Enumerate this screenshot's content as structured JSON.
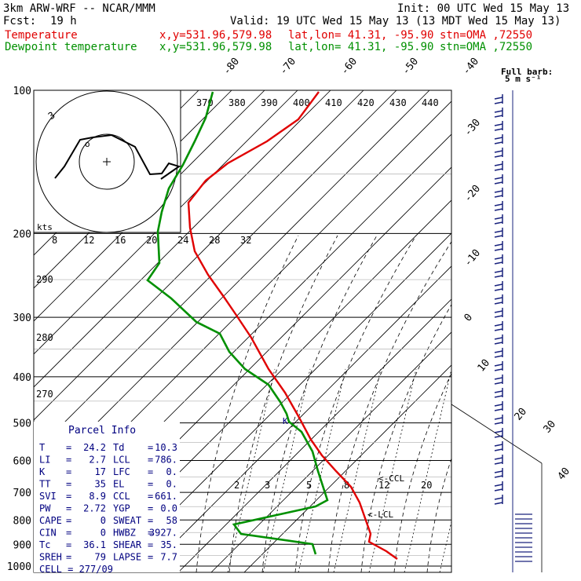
{
  "header": {
    "model": "3km ARW-WRF -- NCAR/MMM",
    "init": "Init: 00 UTC Wed 15 May 13",
    "fcst_label": "Fcst:",
    "fcst_value": "19 h",
    "valid": "Valid: 19 UTC Wed 15 May 13 (13 MDT Wed 15 May 13)",
    "temp_label": "Temperature",
    "dew_label": "Dewpoint temperature",
    "xy": "x,y=531.96,579.98",
    "latlon": "lat,lon= 41.31, -95.90",
    "stn": "stn=OMA ,72550",
    "full_barb": "Full barb:",
    "barb_unit": "5 m s⁻¹"
  },
  "chart_data": {
    "type": "line",
    "title": "",
    "xlabel": "",
    "ylabel": "",
    "y_scale": "log",
    "ylim": [
      1000,
      100
    ],
    "pressure_levels": [
      100,
      200,
      300,
      400,
      500,
      600,
      700,
      800,
      900,
      1000
    ],
    "isotherm_labels": [
      "-80",
      "-70",
      "-60",
      "-50",
      "-40",
      "-30",
      "-20",
      "-10",
      "0",
      "10",
      "20",
      "30",
      "40"
    ],
    "theta_labels": [
      "370",
      "380",
      "390",
      "400",
      "410",
      "420",
      "430",
      "440"
    ],
    "theta_left_labels": [
      "290",
      "280",
      "270"
    ],
    "mixing_ratio_labels": [
      "2",
      "3",
      "5",
      "8",
      "12",
      "20"
    ],
    "ccl_label": "<-CCL",
    "lcl_label": "<-LCL",
    "k_label": "K",
    "hodograph": {
      "units": "kts",
      "ring_label": "3",
      "speed_labels": [
        "8",
        "12",
        "16",
        "20",
        "24",
        "28",
        "32"
      ]
    },
    "series": [
      {
        "name": "Temperature",
        "color": "#e00000",
        "points": [
          [
            406,
            117
          ],
          [
            380,
            152
          ],
          [
            340,
            180
          ],
          [
            290,
            208
          ],
          [
            262,
            230
          ],
          [
            240,
            258
          ],
          [
            242,
            290
          ],
          [
            248,
            320
          ],
          [
            265,
            350
          ],
          [
            285,
            378
          ],
          [
            300,
            400
          ],
          [
            320,
            430
          ],
          [
            342,
            470
          ],
          [
            363,
            500
          ],
          [
            380,
            530
          ],
          [
            396,
            560
          ],
          [
            410,
            580
          ],
          [
            428,
            600
          ],
          [
            447,
            620
          ],
          [
            458,
            640
          ],
          [
            465,
            660
          ],
          [
            472,
            680
          ],
          [
            470,
            690
          ],
          [
            492,
            702
          ],
          [
            506,
            712
          ]
        ]
      },
      {
        "name": "Dewpoint temperature",
        "color": "#009000",
        "points": [
          [
            271,
            117
          ],
          [
            262,
            150
          ],
          [
            248,
            180
          ],
          [
            233,
            210
          ],
          [
            215,
            240
          ],
          [
            206,
            270
          ],
          [
            201,
            295
          ],
          [
            203,
            335
          ],
          [
            188,
            357
          ],
          [
            218,
            380
          ],
          [
            250,
            410
          ],
          [
            280,
            425
          ],
          [
            292,
            448
          ],
          [
            312,
            470
          ],
          [
            342,
            490
          ],
          [
            357,
            512
          ],
          [
            365,
            527
          ],
          [
            368,
            537
          ],
          [
            384,
            550
          ],
          [
            398,
            575
          ],
          [
            405,
            600
          ],
          [
            417,
            637
          ],
          [
            402,
            645
          ],
          [
            298,
            668
          ],
          [
            307,
            680
          ],
          [
            398,
            693
          ],
          [
            402,
            706
          ]
        ]
      }
    ],
    "hodo_trace": [
      [
        70,
        227
      ],
      [
        82,
        212
      ],
      [
        102,
        178
      ],
      [
        118,
        175
      ],
      [
        142,
        172
      ],
      [
        172,
        187
      ],
      [
        191,
        222
      ],
      [
        206,
        221
      ],
      [
        215,
        208
      ],
      [
        228,
        212
      ],
      [
        205,
        228
      ]
    ]
  },
  "parcel_info": {
    "title": "Parcel Info",
    "rows": [
      [
        {
          "k": "T",
          "v": "24.2"
        },
        {
          "k": "Td",
          "v": "10.3"
        }
      ],
      [
        {
          "k": "LI",
          "v": "2.7"
        },
        {
          "k": "LCL",
          "v": "786."
        }
      ],
      [
        {
          "k": "K",
          "v": "17"
        },
        {
          "k": "LFC",
          "v": "0."
        }
      ],
      [
        {
          "k": "TT",
          "v": "35"
        },
        {
          "k": "EL",
          "v": "0."
        }
      ],
      [
        {
          "k": "SVI",
          "v": "8.9"
        },
        {
          "k": "CCL",
          "v": "661."
        }
      ],
      [
        {
          "k": "PW",
          "v": "2.72"
        },
        {
          "k": "YGP",
          "v": "0.0"
        }
      ],
      [
        {
          "k": "CAPE",
          "v": "0"
        },
        {
          "k": "SWEAT",
          "v": "58"
        }
      ],
      [
        {
          "k": "CIN",
          "v": "0"
        },
        {
          "k": "HWBZ",
          "v": "3927."
        }
      ],
      [
        {
          "k": "Tc",
          "v": "36.1"
        },
        {
          "k": "SHEAR",
          "v": "35."
        }
      ],
      [
        {
          "k": "SREH",
          "v": "79"
        },
        {
          "k": "LAPSE",
          "v": "7.7"
        }
      ]
    ],
    "cell_label": "CELL",
    "cell_value": "277/09"
  }
}
